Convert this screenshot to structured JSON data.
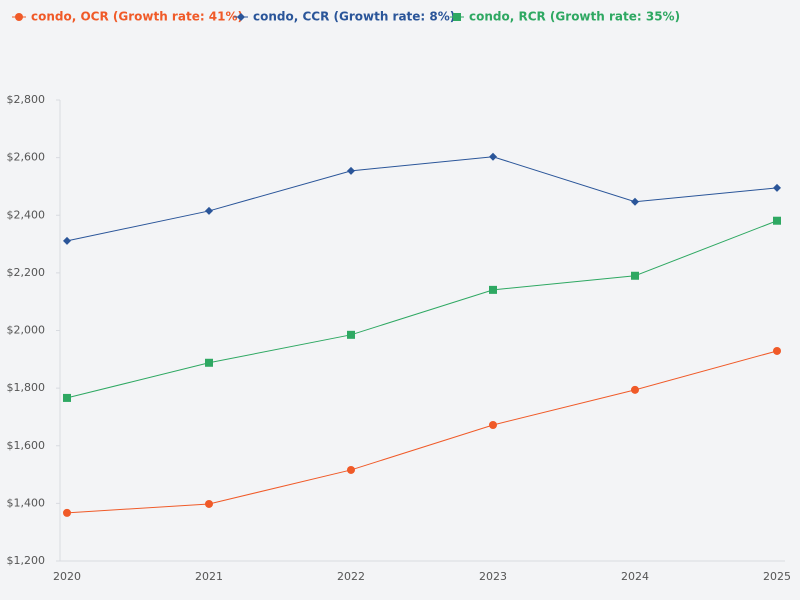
{
  "chart_data": {
    "type": "line",
    "categories": [
      "2020",
      "2021",
      "2022",
      "2023",
      "2024",
      "2025"
    ],
    "series": [
      {
        "name": "condo, OCR (Growth rate: 41%)",
        "color": "#f05a28",
        "marker": "circle",
        "values": [
          1367,
          1398,
          1516,
          1672,
          1794,
          1929
        ]
      },
      {
        "name": "condo, CCR (Growth rate: 8%)",
        "color": "#2a5599",
        "marker": "diamond",
        "values": [
          2311,
          2415,
          2554,
          2603,
          2447,
          2495
        ]
      },
      {
        "name": "condo, RCR (Growth rate: 35%)",
        "color": "#2ea862",
        "marker": "square",
        "values": [
          1766,
          1888,
          1985,
          2141,
          2190,
          2381
        ]
      }
    ],
    "ylim": [
      1200,
      2800
    ],
    "yticks": [
      {
        "value": 1200,
        "label": "$1,200"
      },
      {
        "value": 1400,
        "label": "$1,400"
      },
      {
        "value": 1600,
        "label": "$1,600"
      },
      {
        "value": 1800,
        "label": "$1,800"
      },
      {
        "value": 2000,
        "label": "$2,000"
      },
      {
        "value": 2200,
        "label": "$2,200"
      },
      {
        "value": 2400,
        "label": "$2,400"
      },
      {
        "value": 2600,
        "label": "$2,600"
      },
      {
        "value": 2800,
        "label": "$2,800"
      }
    ],
    "grid": false,
    "legend": "top"
  }
}
